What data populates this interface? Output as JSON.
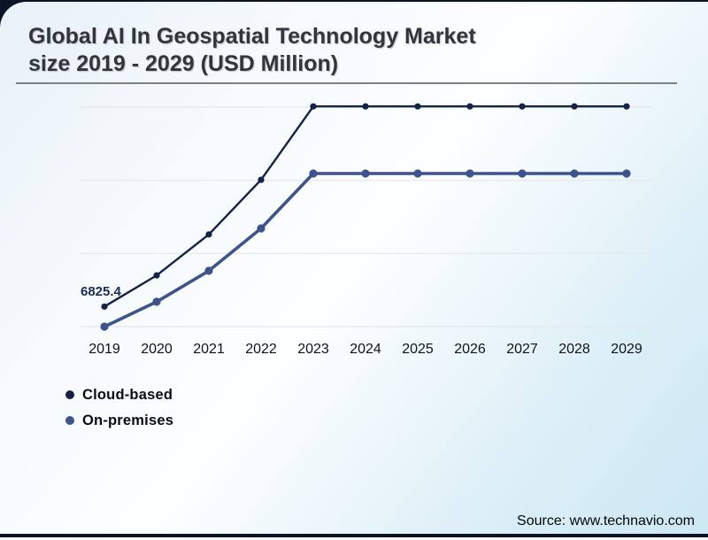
{
  "header": {
    "title_line1": "Global AI In Geospatial Technology Market",
    "title_line2": "size 2019 - 2029 (USD Million)"
  },
  "footer": {
    "source": "Source: www.technavio.com"
  },
  "legend": {
    "items": [
      {
        "label": "Cloud-based",
        "color": "#152248"
      },
      {
        "label": "On-premises",
        "color": "#3e538a"
      }
    ]
  },
  "chart_data": {
    "type": "line",
    "title": "Global AI In Geospatial Technology Market size 2019 - 2029 (USD Million)",
    "x": [
      "2019",
      "2020",
      "2021",
      "2022",
      "2023",
      "2024",
      "2025",
      "2026",
      "2027",
      "2028",
      "2029"
    ],
    "series": [
      {
        "name": "Cloud-based",
        "color": "#152248",
        "values": [
          6825.4,
          8100,
          9780,
          12020,
          15030,
          15030,
          15030,
          15030,
          15030,
          15030,
          15030
        ]
      },
      {
        "name": "On-premises",
        "color": "#3e538a",
        "values": [
          6000,
          7020,
          8290,
          10030,
          12280,
          12280,
          12280,
          12280,
          12280,
          12280,
          12280
        ]
      }
    ],
    "data_labels": [
      {
        "series": "Cloud-based",
        "x": "2019",
        "text": "6825.4"
      }
    ],
    "y_gridlines": [
      6000,
      9000,
      12000,
      15000
    ],
    "ylim": [
      5600,
      15400
    ],
    "grid": "horizontal-only",
    "y_axis_labels_visible": false,
    "legend_position": "bottom-left",
    "gridline_color": "#e4e8e9"
  }
}
